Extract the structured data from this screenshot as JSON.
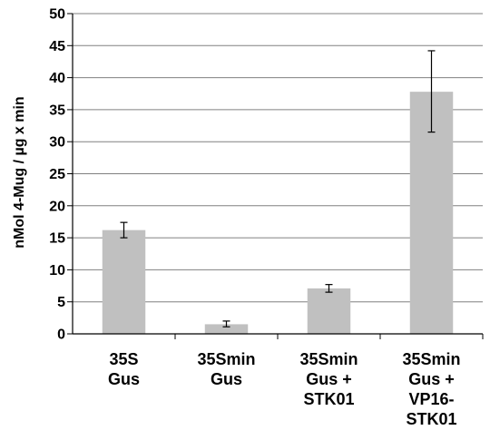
{
  "chart_data": {
    "type": "bar",
    "categories": [
      [
        "35S",
        "Gus"
      ],
      [
        "35Smin",
        "Gus"
      ],
      [
        "35Smin",
        "Gus +",
        "STK01"
      ],
      [
        "35Smin",
        "Gus +",
        "VP16-",
        "STK01"
      ]
    ],
    "values": [
      16.2,
      1.5,
      7.1,
      37.8
    ],
    "errors": [
      [
        15.0,
        17.4
      ],
      [
        1.1,
        2.0
      ],
      [
        6.5,
        7.7
      ],
      [
        31.5,
        44.2
      ]
    ],
    "ylabel": "nMol 4-Mug / µg x min",
    "ylim": [
      0,
      50
    ],
    "yticks": [
      0,
      5,
      10,
      15,
      20,
      25,
      30,
      35,
      40,
      45,
      50
    ],
    "grid": true,
    "bar_color": "#c0c0c0",
    "grid_color": "#808080"
  }
}
